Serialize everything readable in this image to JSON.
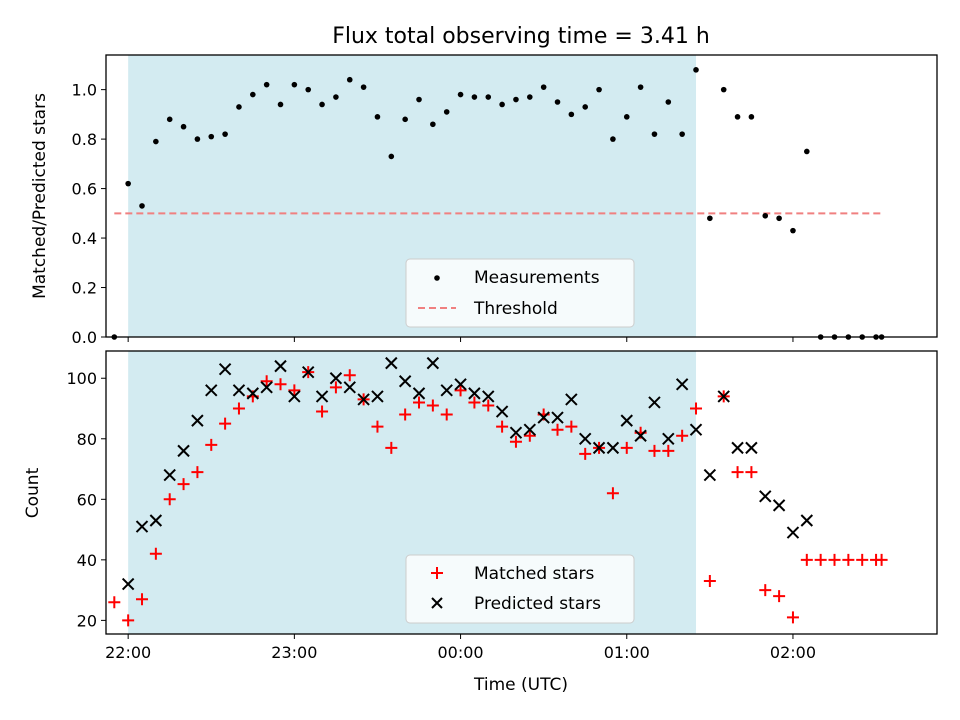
{
  "figure": {
    "title": "Flux total observing time = 3.41 h",
    "xlabel": "Time (UTC)"
  },
  "colors": {
    "observing_span": "#d3ebf1",
    "measurements": "#000000",
    "threshold": "#f08080",
    "matched": "#ff0000",
    "predicted": "#000000"
  },
  "chart_data": [
    {
      "type": "scatter",
      "name": "ratio-panel",
      "ylabel": "Matched/Predicted stars",
      "xlim": [
        "21:52",
        "02:52"
      ],
      "ylim": [
        0,
        1.14
      ],
      "yticks": [
        0.0,
        0.2,
        0.4,
        0.6,
        0.8,
        1.0
      ],
      "ytick_labels": [
        "0.0",
        "0.2",
        "0.4",
        "0.6",
        "0.8",
        "1.0"
      ],
      "observing_span": [
        "22:00",
        "01:25"
      ],
      "threshold": {
        "y": 0.5,
        "x": [
          "21:55",
          "02:32"
        ]
      },
      "legend": {
        "location": "lower center",
        "entries": [
          "Measurements",
          "Threshold"
        ]
      },
      "series": [
        {
          "name": "Measurements",
          "marker": "dot",
          "x": [
            "21:55",
            "22:00",
            "22:05",
            "22:10",
            "22:15",
            "22:20",
            "22:25",
            "22:30",
            "22:35",
            "22:40",
            "22:45",
            "22:50",
            "22:55",
            "23:00",
            "23:05",
            "23:10",
            "23:15",
            "23:20",
            "23:25",
            "23:30",
            "23:35",
            "23:40",
            "23:45",
            "23:50",
            "23:55",
            "00:00",
            "00:05",
            "00:10",
            "00:15",
            "00:20",
            "00:25",
            "00:30",
            "00:35",
            "00:40",
            "00:45",
            "00:50",
            "00:55",
            "01:00",
            "01:05",
            "01:10",
            "01:15",
            "01:20",
            "01:25",
            "01:30",
            "01:35",
            "01:40",
            "01:45",
            "01:50",
            "01:55",
            "02:00",
            "02:05",
            "02:10",
            "02:15",
            "02:20",
            "02:25",
            "02:30",
            "02:32"
          ],
          "y": [
            0.0,
            0.62,
            0.53,
            0.79,
            0.88,
            0.85,
            0.8,
            0.81,
            0.82,
            0.93,
            0.98,
            1.02,
            0.94,
            1.02,
            1.0,
            0.94,
            0.97,
            1.04,
            1.01,
            0.89,
            0.73,
            0.88,
            0.96,
            0.86,
            0.91,
            0.98,
            0.97,
            0.97,
            0.94,
            0.96,
            0.97,
            1.01,
            0.95,
            0.9,
            0.93,
            1.0,
            0.8,
            0.89,
            1.01,
            0.82,
            0.95,
            0.82,
            1.08,
            0.48,
            1.0,
            0.89,
            0.89,
            0.49,
            0.48,
            0.43,
            0.75,
            0.0,
            0.0,
            0.0,
            0.0,
            0.0,
            0.0
          ]
        }
      ]
    },
    {
      "type": "scatter",
      "name": "count-panel",
      "ylabel": "Count",
      "xlim": [
        "21:52",
        "02:52"
      ],
      "ylim": [
        15.5,
        109
      ],
      "yticks": [
        20,
        40,
        60,
        80,
        100
      ],
      "ytick_labels": [
        "20",
        "40",
        "60",
        "80",
        "100"
      ],
      "xticks": [
        "22:00",
        "23:00",
        "00:00",
        "01:00",
        "02:00"
      ],
      "xtick_labels": [
        "22:00",
        "23:00",
        "00:00",
        "01:00",
        "02:00"
      ],
      "observing_span": [
        "22:00",
        "01:25"
      ],
      "legend": {
        "location": "lower center",
        "entries": [
          "Matched stars",
          "Predicted stars"
        ]
      },
      "series": [
        {
          "name": "Matched stars",
          "marker": "plus",
          "x": [
            "21:55",
            "22:00",
            "22:05",
            "22:10",
            "22:15",
            "22:20",
            "22:25",
            "22:30",
            "22:35",
            "22:40",
            "22:45",
            "22:50",
            "22:55",
            "23:00",
            "23:05",
            "23:10",
            "23:15",
            "23:20",
            "23:25",
            "23:30",
            "23:35",
            "23:40",
            "23:45",
            "23:50",
            "23:55",
            "00:00",
            "00:05",
            "00:10",
            "00:15",
            "00:20",
            "00:25",
            "00:30",
            "00:35",
            "00:40",
            "00:45",
            "00:50",
            "00:55",
            "01:00",
            "01:05",
            "01:10",
            "01:15",
            "01:20",
            "01:25",
            "01:30",
            "01:35",
            "01:40",
            "01:45",
            "01:50",
            "01:55",
            "02:00",
            "02:05",
            "02:10",
            "02:15",
            "02:20",
            "02:25",
            "02:30",
            "02:32"
          ],
          "y": [
            26,
            20,
            27,
            42,
            60,
            65,
            69,
            78,
            85,
            90,
            94,
            99,
            98,
            96,
            102,
            89,
            97,
            101,
            93,
            84,
            77,
            88,
            92,
            91,
            88,
            96,
            92,
            91,
            84,
            79,
            81,
            88,
            83,
            84,
            75,
            77,
            62,
            77,
            82,
            76,
            76,
            81,
            90,
            33,
            94,
            69,
            69,
            30,
            28,
            21,
            40,
            40,
            40,
            40,
            40,
            40,
            40
          ]
        },
        {
          "name": "Predicted stars",
          "marker": "x",
          "x": [
            "22:00",
            "22:05",
            "22:10",
            "22:15",
            "22:20",
            "22:25",
            "22:30",
            "22:35",
            "22:40",
            "22:45",
            "22:50",
            "22:55",
            "23:00",
            "23:05",
            "23:10",
            "23:15",
            "23:20",
            "23:25",
            "23:30",
            "23:35",
            "23:40",
            "23:45",
            "23:50",
            "23:55",
            "00:00",
            "00:05",
            "00:10",
            "00:15",
            "00:20",
            "00:25",
            "00:30",
            "00:35",
            "00:40",
            "00:45",
            "00:50",
            "00:55",
            "01:00",
            "01:05",
            "01:10",
            "01:15",
            "01:20",
            "01:25",
            "01:30",
            "01:35",
            "01:40",
            "01:45",
            "01:50",
            "01:55",
            "02:00",
            "02:05"
          ],
          "y": [
            32,
            51,
            53,
            68,
            76,
            86,
            96,
            103,
            96,
            95,
            97,
            104,
            94,
            102,
            94,
            100,
            97,
            93,
            94,
            105,
            99,
            95,
            105,
            96,
            98,
            95,
            94,
            89,
            82,
            83,
            87,
            87,
            93,
            80,
            77,
            77,
            86,
            81,
            92,
            80,
            98,
            83,
            68,
            94,
            77,
            77,
            61,
            58,
            49,
            53
          ]
        }
      ]
    }
  ]
}
